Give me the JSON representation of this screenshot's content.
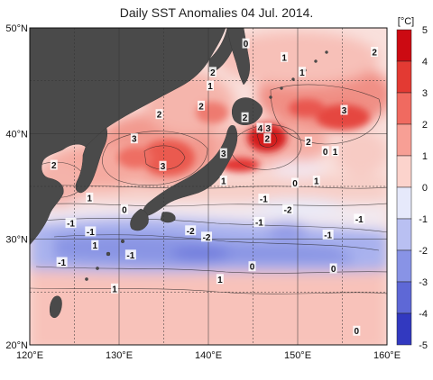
{
  "title": "Daily SST Anomalies 04 Jul. 2014.",
  "unit": "[°C]",
  "lat_labels": [
    {
      "text": "50°N",
      "lat": 50
    },
    {
      "text": "40°N",
      "lat": 40
    },
    {
      "text": "30°N",
      "lat": 30
    },
    {
      "text": "20°N",
      "lat": 20
    }
  ],
  "lon_labels": [
    {
      "text": "120°E",
      "lon": 120
    },
    {
      "text": "130°E",
      "lon": 130
    },
    {
      "text": "140°E",
      "lon": 140
    },
    {
      "text": "150°E",
      "lon": 150
    },
    {
      "text": "160°E",
      "lon": 160
    }
  ],
  "colorbar": {
    "ticks": [
      "5",
      "4",
      "3",
      "2",
      "1",
      "0",
      "-1",
      "-2",
      "-3",
      "-4",
      "-5"
    ],
    "colors": [
      "#cc0a12",
      "#e33a33",
      "#f06a60",
      "#f79f95",
      "#fcd3cc",
      "#e6e9fb",
      "#b9c0f2",
      "#8893e6",
      "#5e68d6",
      "#3239c0"
    ]
  },
  "colors": {
    "land": "#4a4a4a",
    "ocean_neutral": "#f4f4fb",
    "grid": "#333333"
  },
  "contour_labels": [
    {
      "text": "0",
      "lon": 144.2,
      "lat": 48.5
    },
    {
      "text": "1",
      "lon": 148.5,
      "lat": 47.2
    },
    {
      "text": "2",
      "lon": 158.6,
      "lat": 47.7
    },
    {
      "text": "1",
      "lon": 150.5,
      "lat": 45.8
    },
    {
      "text": "2",
      "lon": 140.5,
      "lat": 45.8
    },
    {
      "text": "1",
      "lon": 140.2,
      "lat": 44.5
    },
    {
      "text": "3",
      "lon": 155.2,
      "lat": 42.2
    },
    {
      "text": "2",
      "lon": 144.1,
      "lat": 41.5
    },
    {
      "text": "2",
      "lon": 134.5,
      "lat": 41.8
    },
    {
      "text": "2",
      "lon": 139.2,
      "lat": 42.6
    },
    {
      "text": "4",
      "lon": 145.8,
      "lat": 40.5
    },
    {
      "text": "3",
      "lon": 146.7,
      "lat": 40.5
    },
    {
      "text": "2",
      "lon": 146.6,
      "lat": 39.5
    },
    {
      "text": "3",
      "lon": 131.7,
      "lat": 39.5
    },
    {
      "text": "2",
      "lon": 151.2,
      "lat": 39.2
    },
    {
      "text": "0",
      "lon": 153.1,
      "lat": 38.3
    },
    {
      "text": "1",
      "lon": 154.2,
      "lat": 38.3
    },
    {
      "text": "3",
      "lon": 141.7,
      "lat": 38.1
    },
    {
      "text": "2",
      "lon": 122.7,
      "lat": 37.0
    },
    {
      "text": "3",
      "lon": 134.9,
      "lat": 36.9
    },
    {
      "text": "1",
      "lon": 141.7,
      "lat": 35.5
    },
    {
      "text": "0",
      "lon": 149.7,
      "lat": 35.3
    },
    {
      "text": "1",
      "lon": 152.1,
      "lat": 35.5
    },
    {
      "text": "1",
      "lon": 126.7,
      "lat": 33.9
    },
    {
      "text": "-1",
      "lon": 146.2,
      "lat": 33.8
    },
    {
      "text": "0",
      "lon": 130.6,
      "lat": 32.8
    },
    {
      "text": "-2",
      "lon": 148.9,
      "lat": 32.8
    },
    {
      "text": "-1",
      "lon": 156.9,
      "lat": 31.9
    },
    {
      "text": "-1",
      "lon": 124.6,
      "lat": 31.5
    },
    {
      "text": "-2",
      "lon": 138.0,
      "lat": 30.8
    },
    {
      "text": "-2",
      "lon": 139.8,
      "lat": 30.2
    },
    {
      "text": "-1",
      "lon": 145.7,
      "lat": 31.6
    },
    {
      "text": "-1",
      "lon": 153.4,
      "lat": 30.4
    },
    {
      "text": "1",
      "lon": 127.3,
      "lat": 29.4
    },
    {
      "text": "-1",
      "lon": 126.8,
      "lat": 30.7
    },
    {
      "text": "-1",
      "lon": 131.3,
      "lat": 28.5
    },
    {
      "text": "-1",
      "lon": 123.6,
      "lat": 27.8
    },
    {
      "text": "0",
      "lon": 144.9,
      "lat": 27.4
    },
    {
      "text": "0",
      "lon": 154.0,
      "lat": 27.2
    },
    {
      "text": "1",
      "lon": 141.3,
      "lat": 26.2
    },
    {
      "text": "1",
      "lon": 129.5,
      "lat": 25.3
    },
    {
      "text": "0",
      "lon": 156.6,
      "lat": 21.3
    }
  ]
}
